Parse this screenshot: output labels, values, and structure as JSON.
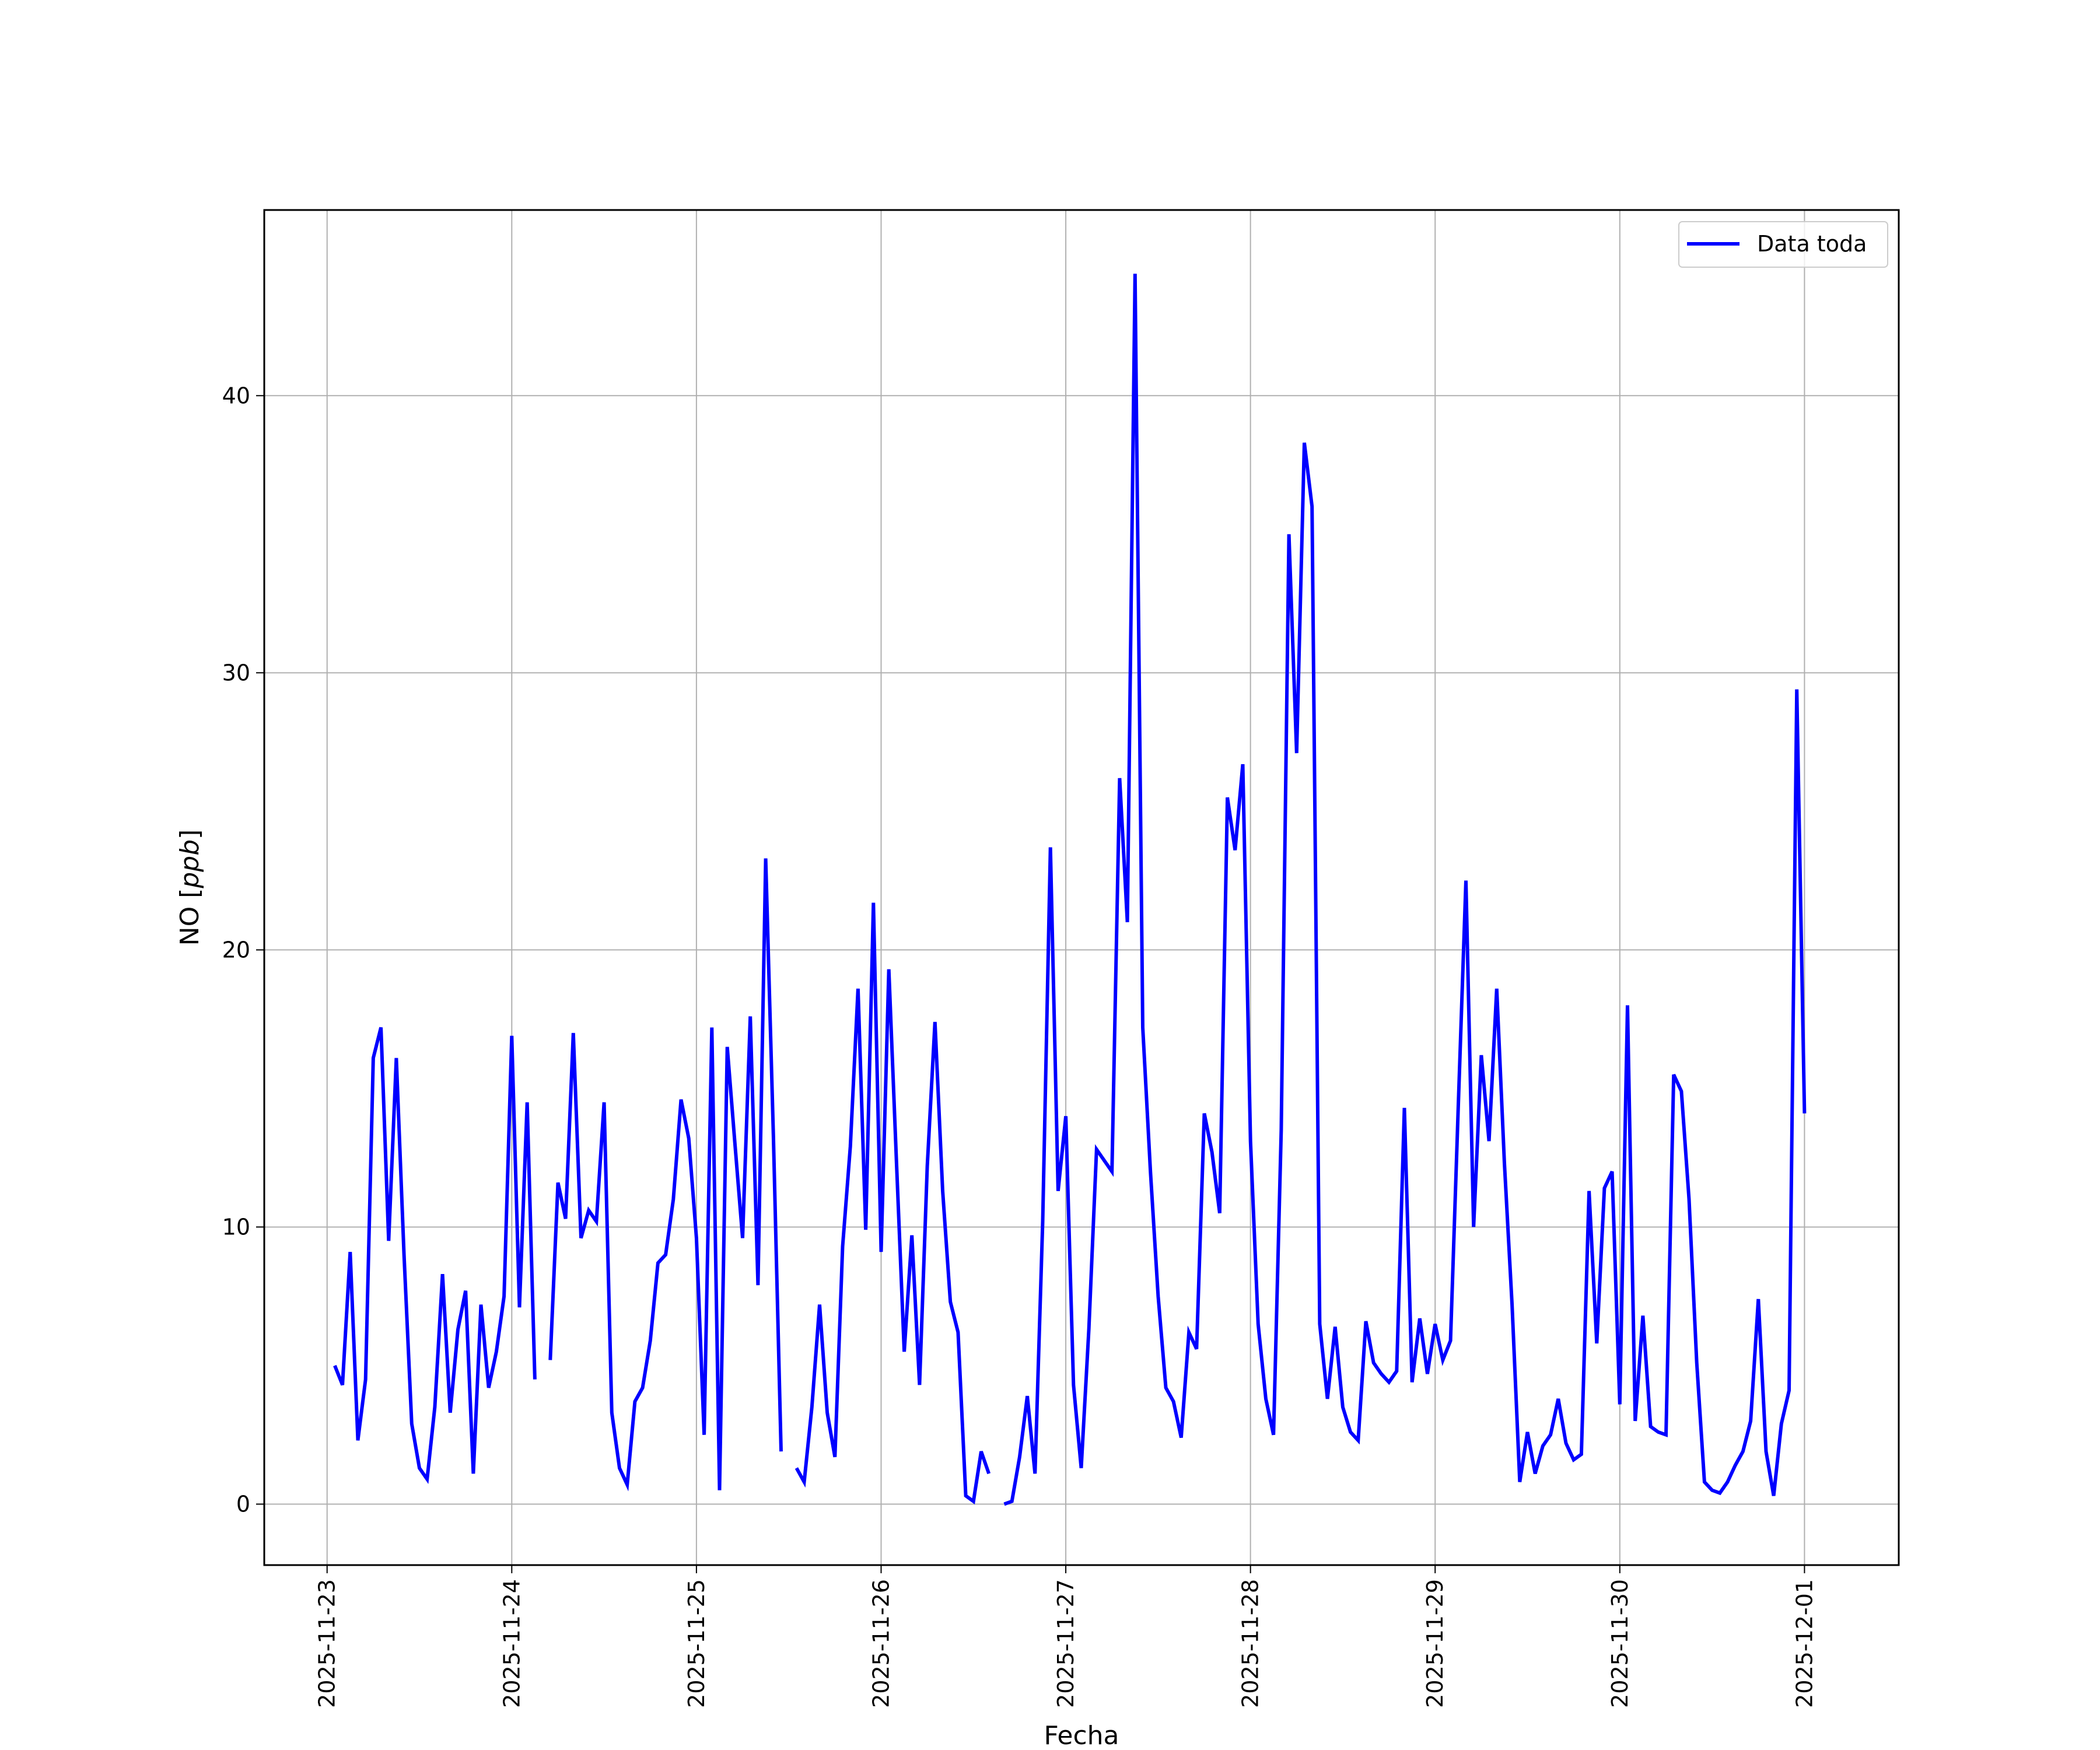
{
  "chart_data": {
    "type": "line",
    "title": "",
    "xlabel": "Fecha",
    "ylabel": "NO [ppb]",
    "ylabel_parts": {
      "prefix": "NO [",
      "unit": "ppb",
      "suffix": "]"
    },
    "x_ticks": [
      "2025-11-23",
      "2025-11-24",
      "2025-11-25",
      "2025-11-26",
      "2025-11-27",
      "2025-11-28",
      "2025-11-29",
      "2025-11-30",
      "2025-12-01"
    ],
    "y_ticks": [
      0,
      10,
      20,
      30,
      40
    ],
    "xlim": [
      "2025-11-22T15:50",
      "2025-12-01T12:15"
    ],
    "ylim": [
      -2.2,
      46.7
    ],
    "grid": true,
    "legend_position": "top-right",
    "series": [
      {
        "name": "Data toda",
        "color": "#0000ff",
        "points": [
          [
            "2025-11-23T01:00",
            5.0
          ],
          [
            "2025-11-23T02:00",
            4.3
          ],
          [
            "2025-11-23T03:00",
            9.1
          ],
          [
            "2025-11-23T04:00",
            2.3
          ],
          [
            "2025-11-23T05:00",
            4.5
          ],
          [
            "2025-11-23T06:00",
            16.1
          ],
          [
            "2025-11-23T07:00",
            17.2
          ],
          [
            "2025-11-23T08:00",
            9.5
          ],
          [
            "2025-11-23T09:00",
            16.1
          ],
          [
            "2025-11-23T10:00",
            9.0
          ],
          [
            "2025-11-23T11:00",
            2.9
          ],
          [
            "2025-11-23T12:00",
            1.3
          ],
          [
            "2025-11-23T13:00",
            0.9
          ],
          [
            "2025-11-23T14:00",
            3.5
          ],
          [
            "2025-11-23T15:00",
            8.3
          ],
          [
            "2025-11-23T16:00",
            3.3
          ],
          [
            "2025-11-23T17:00",
            6.3
          ],
          [
            "2025-11-23T18:00",
            7.7
          ],
          [
            "2025-11-23T19:00",
            1.1
          ],
          [
            "2025-11-23T20:00",
            7.2
          ],
          [
            "2025-11-23T21:00",
            4.2
          ],
          [
            "2025-11-23T22:00",
            5.5
          ],
          [
            "2025-11-23T23:00",
            7.5
          ],
          [
            "2025-11-24T00:00",
            16.9
          ],
          [
            "2025-11-24T01:00",
            7.1
          ],
          [
            "2025-11-24T02:00",
            14.5
          ],
          [
            "2025-11-24T03:00",
            4.5
          ],
          [
            "2025-11-24T04:00",
            null
          ],
          [
            "2025-11-24T05:00",
            5.2
          ],
          [
            "2025-11-24T06:00",
            11.6
          ],
          [
            "2025-11-24T07:00",
            10.3
          ],
          [
            "2025-11-24T08:00",
            17.0
          ],
          [
            "2025-11-24T09:00",
            9.6
          ],
          [
            "2025-11-24T10:00",
            10.6
          ],
          [
            "2025-11-24T11:00",
            10.2
          ],
          [
            "2025-11-24T12:00",
            14.5
          ],
          [
            "2025-11-24T13:00",
            3.3
          ],
          [
            "2025-11-24T14:00",
            1.3
          ],
          [
            "2025-11-24T15:00",
            0.7
          ],
          [
            "2025-11-24T16:00",
            3.7
          ],
          [
            "2025-11-24T17:00",
            4.2
          ],
          [
            "2025-11-24T18:00",
            5.9
          ],
          [
            "2025-11-24T19:00",
            8.7
          ],
          [
            "2025-11-24T20:00",
            9.0
          ],
          [
            "2025-11-24T21:00",
            11.0
          ],
          [
            "2025-11-24T22:00",
            14.6
          ],
          [
            "2025-11-24T23:00",
            13.2
          ],
          [
            "2025-11-25T00:00",
            9.6
          ],
          [
            "2025-11-25T01:00",
            2.5
          ],
          [
            "2025-11-25T02:00",
            17.2
          ],
          [
            "2025-11-25T03:00",
            0.5
          ],
          [
            "2025-11-25T04:00",
            16.5
          ],
          [
            "2025-11-25T05:00",
            13.0
          ],
          [
            "2025-11-25T06:00",
            9.6
          ],
          [
            "2025-11-25T07:00",
            17.6
          ],
          [
            "2025-11-25T08:00",
            7.9
          ],
          [
            "2025-11-25T09:00",
            23.3
          ],
          [
            "2025-11-25T10:00",
            13.3
          ],
          [
            "2025-11-25T11:00",
            1.9
          ],
          [
            "2025-11-25T12:00",
            null
          ],
          [
            "2025-11-25T13:00",
            1.3
          ],
          [
            "2025-11-25T14:00",
            0.8
          ],
          [
            "2025-11-25T15:00",
            3.5
          ],
          [
            "2025-11-25T16:00",
            7.2
          ],
          [
            "2025-11-25T17:00",
            3.3
          ],
          [
            "2025-11-25T18:00",
            1.7
          ],
          [
            "2025-11-25T19:00",
            9.3
          ],
          [
            "2025-11-25T20:00",
            12.9
          ],
          [
            "2025-11-25T21:00",
            18.6
          ],
          [
            "2025-11-25T22:00",
            9.9
          ],
          [
            "2025-11-25T23:00",
            21.7
          ],
          [
            "2025-11-26T00:00",
            9.1
          ],
          [
            "2025-11-26T01:00",
            19.3
          ],
          [
            "2025-11-26T02:00",
            12.3
          ],
          [
            "2025-11-26T03:00",
            5.5
          ],
          [
            "2025-11-26T04:00",
            9.7
          ],
          [
            "2025-11-26T05:00",
            4.3
          ],
          [
            "2025-11-26T06:00",
            12.2
          ],
          [
            "2025-11-26T07:00",
            17.4
          ],
          [
            "2025-11-26T08:00",
            11.3
          ],
          [
            "2025-11-26T09:00",
            7.3
          ],
          [
            "2025-11-26T10:00",
            6.2
          ],
          [
            "2025-11-26T11:00",
            0.3
          ],
          [
            "2025-11-26T12:00",
            0.1
          ],
          [
            "2025-11-26T13:00",
            1.9
          ],
          [
            "2025-11-26T14:00",
            1.1
          ],
          [
            "2025-11-26T15:00",
            null
          ],
          [
            "2025-11-26T16:00",
            0.0
          ],
          [
            "2025-11-26T17:00",
            0.1
          ],
          [
            "2025-11-26T18:00",
            1.7
          ],
          [
            "2025-11-26T19:00",
            3.9
          ],
          [
            "2025-11-26T20:00",
            1.1
          ],
          [
            "2025-11-26T21:00",
            10.2
          ],
          [
            "2025-11-26T22:00",
            23.7
          ],
          [
            "2025-11-26T23:00",
            11.3
          ],
          [
            "2025-11-27T00:00",
            14.0
          ],
          [
            "2025-11-27T01:00",
            4.3
          ],
          [
            "2025-11-27T02:00",
            1.3
          ],
          [
            "2025-11-27T03:00",
            6.3
          ],
          [
            "2025-11-27T04:00",
            12.8
          ],
          [
            "2025-11-27T05:00",
            12.4
          ],
          [
            "2025-11-27T06:00",
            12.0
          ],
          [
            "2025-11-27T07:00",
            26.2
          ],
          [
            "2025-11-27T08:00",
            21.0
          ],
          [
            "2025-11-27T09:00",
            44.4
          ],
          [
            "2025-11-27T10:00",
            17.2
          ],
          [
            "2025-11-27T11:00",
            12.0
          ],
          [
            "2025-11-27T12:00",
            7.5
          ],
          [
            "2025-11-27T13:00",
            4.2
          ],
          [
            "2025-11-27T14:00",
            3.7
          ],
          [
            "2025-11-27T15:00",
            2.4
          ],
          [
            "2025-11-27T16:00",
            6.2
          ],
          [
            "2025-11-27T17:00",
            5.6
          ],
          [
            "2025-11-27T18:00",
            14.1
          ],
          [
            "2025-11-27T19:00",
            12.7
          ],
          [
            "2025-11-27T20:00",
            10.5
          ],
          [
            "2025-11-27T21:00",
            25.5
          ],
          [
            "2025-11-27T22:00",
            23.6
          ],
          [
            "2025-11-27T23:00",
            26.7
          ],
          [
            "2025-11-28T00:00",
            13.1
          ],
          [
            "2025-11-28T01:00",
            6.5
          ],
          [
            "2025-11-28T02:00",
            3.8
          ],
          [
            "2025-11-28T03:00",
            2.5
          ],
          [
            "2025-11-28T04:00",
            13.5
          ],
          [
            "2025-11-28T05:00",
            35.0
          ],
          [
            "2025-11-28T06:00",
            27.1
          ],
          [
            "2025-11-28T07:00",
            38.3
          ],
          [
            "2025-11-28T08:00",
            36.0
          ],
          [
            "2025-11-28T09:00",
            6.5
          ],
          [
            "2025-11-28T10:00",
            3.8
          ],
          [
            "2025-11-28T11:00",
            6.4
          ],
          [
            "2025-11-28T12:00",
            3.5
          ],
          [
            "2025-11-28T13:00",
            2.6
          ],
          [
            "2025-11-28T14:00",
            2.3
          ],
          [
            "2025-11-28T15:00",
            6.6
          ],
          [
            "2025-11-28T16:00",
            5.1
          ],
          [
            "2025-11-28T17:00",
            4.7
          ],
          [
            "2025-11-28T18:00",
            4.4
          ],
          [
            "2025-11-28T19:00",
            4.8
          ],
          [
            "2025-11-28T20:00",
            14.3
          ],
          [
            "2025-11-28T21:00",
            4.4
          ],
          [
            "2025-11-28T22:00",
            6.7
          ],
          [
            "2025-11-28T23:00",
            4.7
          ],
          [
            "2025-11-29T00:00",
            6.5
          ],
          [
            "2025-11-29T01:00",
            5.2
          ],
          [
            "2025-11-29T02:00",
            5.9
          ],
          [
            "2025-11-29T03:00",
            14.3
          ],
          [
            "2025-11-29T04:00",
            22.5
          ],
          [
            "2025-11-29T05:00",
            10.0
          ],
          [
            "2025-11-29T06:00",
            16.2
          ],
          [
            "2025-11-29T07:00",
            13.1
          ],
          [
            "2025-11-29T08:00",
            18.6
          ],
          [
            "2025-11-29T09:00",
            12.3
          ],
          [
            "2025-11-29T10:00",
            7.2
          ],
          [
            "2025-11-29T11:00",
            0.8
          ],
          [
            "2025-11-29T12:00",
            2.6
          ],
          [
            "2025-11-29T13:00",
            1.1
          ],
          [
            "2025-11-29T14:00",
            2.1
          ],
          [
            "2025-11-29T15:00",
            2.5
          ],
          [
            "2025-11-29T16:00",
            3.8
          ],
          [
            "2025-11-29T17:00",
            2.2
          ],
          [
            "2025-11-29T18:00",
            1.6
          ],
          [
            "2025-11-29T19:00",
            1.8
          ],
          [
            "2025-11-29T20:00",
            11.3
          ],
          [
            "2025-11-29T21:00",
            5.8
          ],
          [
            "2025-11-29T22:00",
            11.4
          ],
          [
            "2025-11-29T23:00",
            12.0
          ],
          [
            "2025-11-30T00:00",
            3.6
          ],
          [
            "2025-11-30T01:00",
            18.0
          ],
          [
            "2025-11-30T02:00",
            3.0
          ],
          [
            "2025-11-30T03:00",
            6.8
          ],
          [
            "2025-11-30T04:00",
            2.8
          ],
          [
            "2025-11-30T05:00",
            2.6
          ],
          [
            "2025-11-30T06:00",
            2.5
          ],
          [
            "2025-11-30T07:00",
            15.5
          ],
          [
            "2025-11-30T08:00",
            14.9
          ],
          [
            "2025-11-30T09:00",
            11.0
          ],
          [
            "2025-11-30T10:00",
            5.1
          ],
          [
            "2025-11-30T11:00",
            0.8
          ],
          [
            "2025-11-30T12:00",
            0.5
          ],
          [
            "2025-11-30T13:00",
            0.4
          ],
          [
            "2025-11-30T14:00",
            0.8
          ],
          [
            "2025-11-30T15:00",
            1.4
          ],
          [
            "2025-11-30T16:00",
            1.9
          ],
          [
            "2025-11-30T17:00",
            3.0
          ],
          [
            "2025-11-30T18:00",
            7.4
          ],
          [
            "2025-11-30T19:00",
            1.9
          ],
          [
            "2025-11-30T20:00",
            0.3
          ],
          [
            "2025-11-30T21:00",
            2.9
          ],
          [
            "2025-11-30T22:00",
            4.1
          ],
          [
            "2025-11-30T23:00",
            29.4
          ],
          [
            "2025-12-01T00:00",
            14.1
          ]
        ]
      }
    ]
  }
}
